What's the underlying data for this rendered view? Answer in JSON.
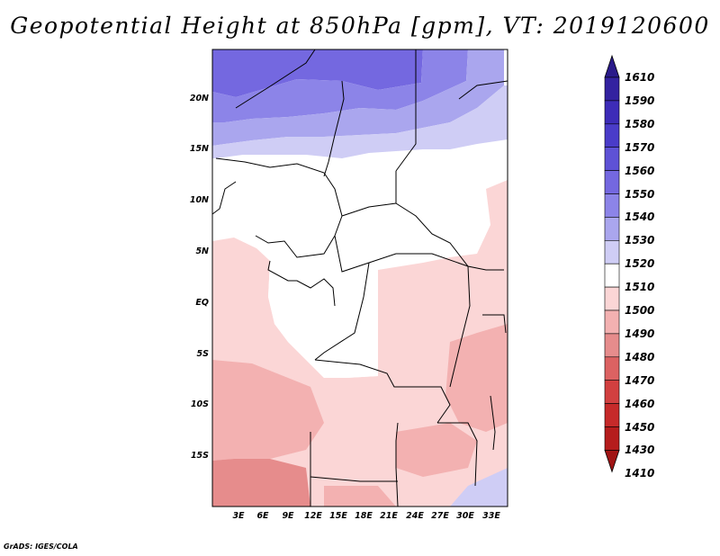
{
  "title": "Geopotential Height at 850hPa [gpm], VT: 2019120600",
  "footer": "GrADS: IGES/COLA",
  "axes": {
    "x_ticks": [
      "3E",
      "6E",
      "9E",
      "12E",
      "15E",
      "18E",
      "21E",
      "24E",
      "27E",
      "30E",
      "33E"
    ],
    "y_ticks": [
      "20N",
      "15N",
      "10N",
      "5N",
      "EQ",
      "5S",
      "10S",
      "15S"
    ]
  },
  "colorbar": {
    "levels": [
      "1610",
      "1590",
      "1580",
      "1570",
      "1560",
      "1550",
      "1540",
      "1530",
      "1520",
      "1510",
      "1500",
      "1490",
      "1480",
      "1470",
      "1460",
      "1450",
      "1430",
      "1410"
    ],
    "colors": [
      "#2a1a8a",
      "#3322a0",
      "#3d2cb8",
      "#4a3cc9",
      "#5e52d6",
      "#7468e0",
      "#8c84e8",
      "#aaa6ee",
      "#cfcdf5",
      "#ffffff",
      "#fbd6d6",
      "#f3b1b1",
      "#e68c8c",
      "#dc6262",
      "#d24040",
      "#c62a2a",
      "#b51d1d",
      "#a01414"
    ]
  }
}
